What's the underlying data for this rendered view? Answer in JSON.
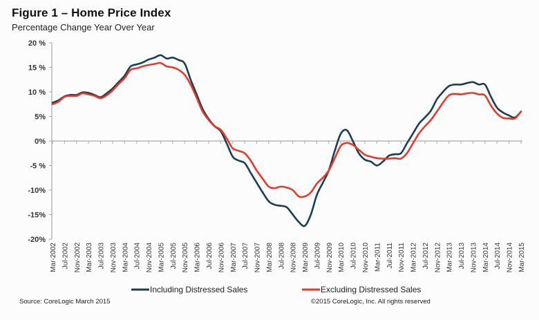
{
  "header": {
    "title": "Figure 1 – Home Price Index",
    "subtitle": "Percentage Change Year Over Year"
  },
  "footer": {
    "source": "Source: CoreLogic  March 2015",
    "copyright": "©2015 CoreLogic, Inc. All rights reserved"
  },
  "chart_data": {
    "type": "line",
    "title": "Figure 1 – Home Price Index",
    "subtitle": "Percentage Change Year Over Year",
    "xlabel": "",
    "ylabel": "",
    "ylim": [
      -20,
      20
    ],
    "y_ticks": [
      20,
      15,
      10,
      5,
      0,
      -5,
      -10,
      -15,
      -20
    ],
    "y_tick_labels": [
      "20 %",
      "15 %",
      "10 %",
      "5%",
      "0%",
      "-5 %",
      "-10%",
      "-15%",
      "-20%"
    ],
    "x_tick_labels": [
      "Mar-2002",
      "Jul-2002",
      "Nov-2002",
      "Mar-2003",
      "Jul-2003",
      "Nov-2003",
      "Mar-2004",
      "Jul-2004",
      "Nov-2004",
      "Mar-2005",
      "Jul-2005",
      "Nov-2005",
      "Mar-2006",
      "Jul-2006",
      "Nov-2006",
      "Mar-2007",
      "Jul-2007",
      "Nov-2007",
      "Mar-2008",
      "Jul-2008",
      "Nov-2008",
      "Mar-2009",
      "Jul-2009",
      "Nov-2009",
      "Mar-2010",
      "Jul-2010",
      "Nov-2010",
      "Mar-2011",
      "Jul-2011",
      "Nov-2011",
      "Mar-2012",
      "Jul-2012",
      "Nov-2012",
      "Mar-2013",
      "Jul-2013",
      "Nov-2013",
      "Mar-2014",
      "Jul-2014",
      "Nov-2014",
      "Mar-2015"
    ],
    "x": [
      "Mar-2002",
      "May-2002",
      "Jul-2002",
      "Sep-2002",
      "Nov-2002",
      "Jan-2003",
      "Mar-2003",
      "May-2003",
      "Jul-2003",
      "Sep-2003",
      "Nov-2003",
      "Jan-2004",
      "Mar-2004",
      "May-2004",
      "Jul-2004",
      "Sep-2004",
      "Nov-2004",
      "Jan-2005",
      "Mar-2005",
      "May-2005",
      "Jul-2005",
      "Sep-2005",
      "Nov-2005",
      "Jan-2006",
      "Mar-2006",
      "May-2006",
      "Jul-2006",
      "Sep-2006",
      "Nov-2006",
      "Jan-2007",
      "Mar-2007",
      "May-2007",
      "Jul-2007",
      "Sep-2007",
      "Nov-2007",
      "Jan-2008",
      "Mar-2008",
      "May-2008",
      "Jul-2008",
      "Sep-2008",
      "Nov-2008",
      "Jan-2009",
      "Mar-2009",
      "May-2009",
      "Jul-2009",
      "Sep-2009",
      "Nov-2009",
      "Jan-2010",
      "Mar-2010",
      "May-2010",
      "Jul-2010",
      "Sep-2010",
      "Nov-2010",
      "Jan-2011",
      "Mar-2011",
      "May-2011",
      "Jul-2011",
      "Sep-2011",
      "Nov-2011",
      "Jan-2012",
      "Mar-2012",
      "May-2012",
      "Jul-2012",
      "Sep-2012",
      "Nov-2012",
      "Jan-2013",
      "Mar-2013",
      "May-2013",
      "Jul-2013",
      "Sep-2013",
      "Nov-2013",
      "Jan-2014",
      "Mar-2014",
      "May-2014",
      "Jul-2014",
      "Sep-2014",
      "Nov-2014",
      "Jan-2015",
      "Mar-2015"
    ],
    "series": [
      {
        "name": "Including Distressed Sales",
        "color": "#1a3d54",
        "values": [
          7.8,
          8.3,
          9.1,
          9.4,
          9.4,
          9.9,
          9.8,
          9.4,
          8.9,
          9.7,
          10.7,
          12.0,
          13.3,
          15.2,
          15.6,
          16.0,
          16.6,
          17.0,
          17.5,
          16.8,
          17.0,
          16.5,
          15.8,
          12.5,
          9.5,
          6.5,
          4.5,
          3.0,
          2.0,
          -0.5,
          -3.2,
          -4.0,
          -4.5,
          -6.5,
          -8.5,
          -10.5,
          -12.3,
          -13.0,
          -13.2,
          -13.5,
          -15.0,
          -16.5,
          -17.3,
          -15.0,
          -11.0,
          -8.5,
          -6.0,
          -2.0,
          1.5,
          2.2,
          0.0,
          -2.5,
          -3.8,
          -4.2,
          -5.0,
          -4.2,
          -3.0,
          -2.7,
          -2.5,
          -0.5,
          1.5,
          3.5,
          4.8,
          6.2,
          8.5,
          10.0,
          11.2,
          11.5,
          11.5,
          11.8,
          12.0,
          11.5,
          11.5,
          9.0,
          6.8,
          5.8,
          5.2,
          4.8,
          6.0
        ]
      },
      {
        "name": "Excluding Distressed Sales",
        "color": "#e8382a",
        "values": [
          7.5,
          8.0,
          9.0,
          9.2,
          9.2,
          9.7,
          9.5,
          9.2,
          8.7,
          9.3,
          10.3,
          11.6,
          12.8,
          14.5,
          14.8,
          15.2,
          15.5,
          15.7,
          15.9,
          15.2,
          15.0,
          14.5,
          13.5,
          11.5,
          8.8,
          6.0,
          4.3,
          3.0,
          2.3,
          0.5,
          -1.5,
          -2.0,
          -2.5,
          -4.0,
          -6.0,
          -7.7,
          -9.3,
          -9.6,
          -9.3,
          -9.5,
          -10.0,
          -11.3,
          -11.3,
          -10.5,
          -8.7,
          -7.5,
          -6.0,
          -3.5,
          -1.0,
          -0.4,
          -0.8,
          -1.8,
          -2.8,
          -3.2,
          -3.5,
          -3.6,
          -3.6,
          -3.5,
          -3.6,
          -2.5,
          -0.5,
          1.5,
          3.0,
          4.3,
          6.0,
          7.8,
          9.3,
          9.6,
          9.5,
          9.7,
          9.8,
          9.5,
          9.3,
          7.2,
          5.6,
          4.7,
          4.6,
          4.6,
          6.0
        ]
      }
    ],
    "grid": false,
    "legend_position": "bottom-center"
  }
}
